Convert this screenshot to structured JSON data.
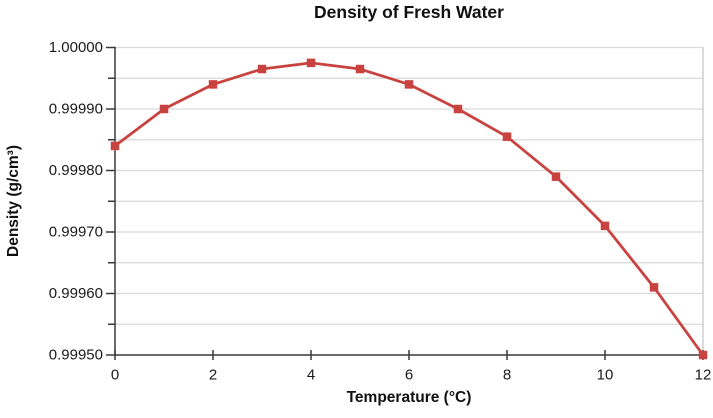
{
  "chart_data": {
    "type": "line",
    "title": "Density of Fresh Water",
    "xlabel": "Temperature (°C)",
    "ylabel": "Density (g/cm³)",
    "x": [
      0,
      1,
      2,
      3,
      4,
      5,
      6,
      7,
      8,
      9,
      10,
      11,
      12
    ],
    "y": [
      0.99984,
      0.9999,
      0.99994,
      0.999965,
      0.999975,
      0.999965,
      0.99994,
      0.9999,
      0.999855,
      0.99979,
      0.99971,
      0.99961,
      0.9995
    ],
    "xlim": [
      0,
      12
    ],
    "ylim": [
      0.9995,
      1.0
    ],
    "x_tick_values": [
      0,
      2,
      4,
      6,
      8,
      10,
      12
    ],
    "x_tick_labels": [
      "0",
      "2",
      "4",
      "6",
      "8",
      "10",
      "12"
    ],
    "y_tick_values": [
      1.0,
      0.9999,
      0.9998,
      0.9997,
      0.9996,
      0.9995
    ],
    "y_tick_labels": [
      "1.00000",
      "0.99990",
      "0.99980",
      "0.99970",
      "0.99960",
      "0.99950"
    ],
    "y_minor_tick_step": 5e-05,
    "grid": "horizontal, at every 0.00005",
    "legend": "none",
    "marker": "square",
    "colors": {
      "series": "#c8423f",
      "gridline": "#d9d9d9",
      "plot_border": "#c8c8c8",
      "axis": "#3a3a3a",
      "text": "#1a1a1a",
      "background": "#ffffff"
    }
  }
}
